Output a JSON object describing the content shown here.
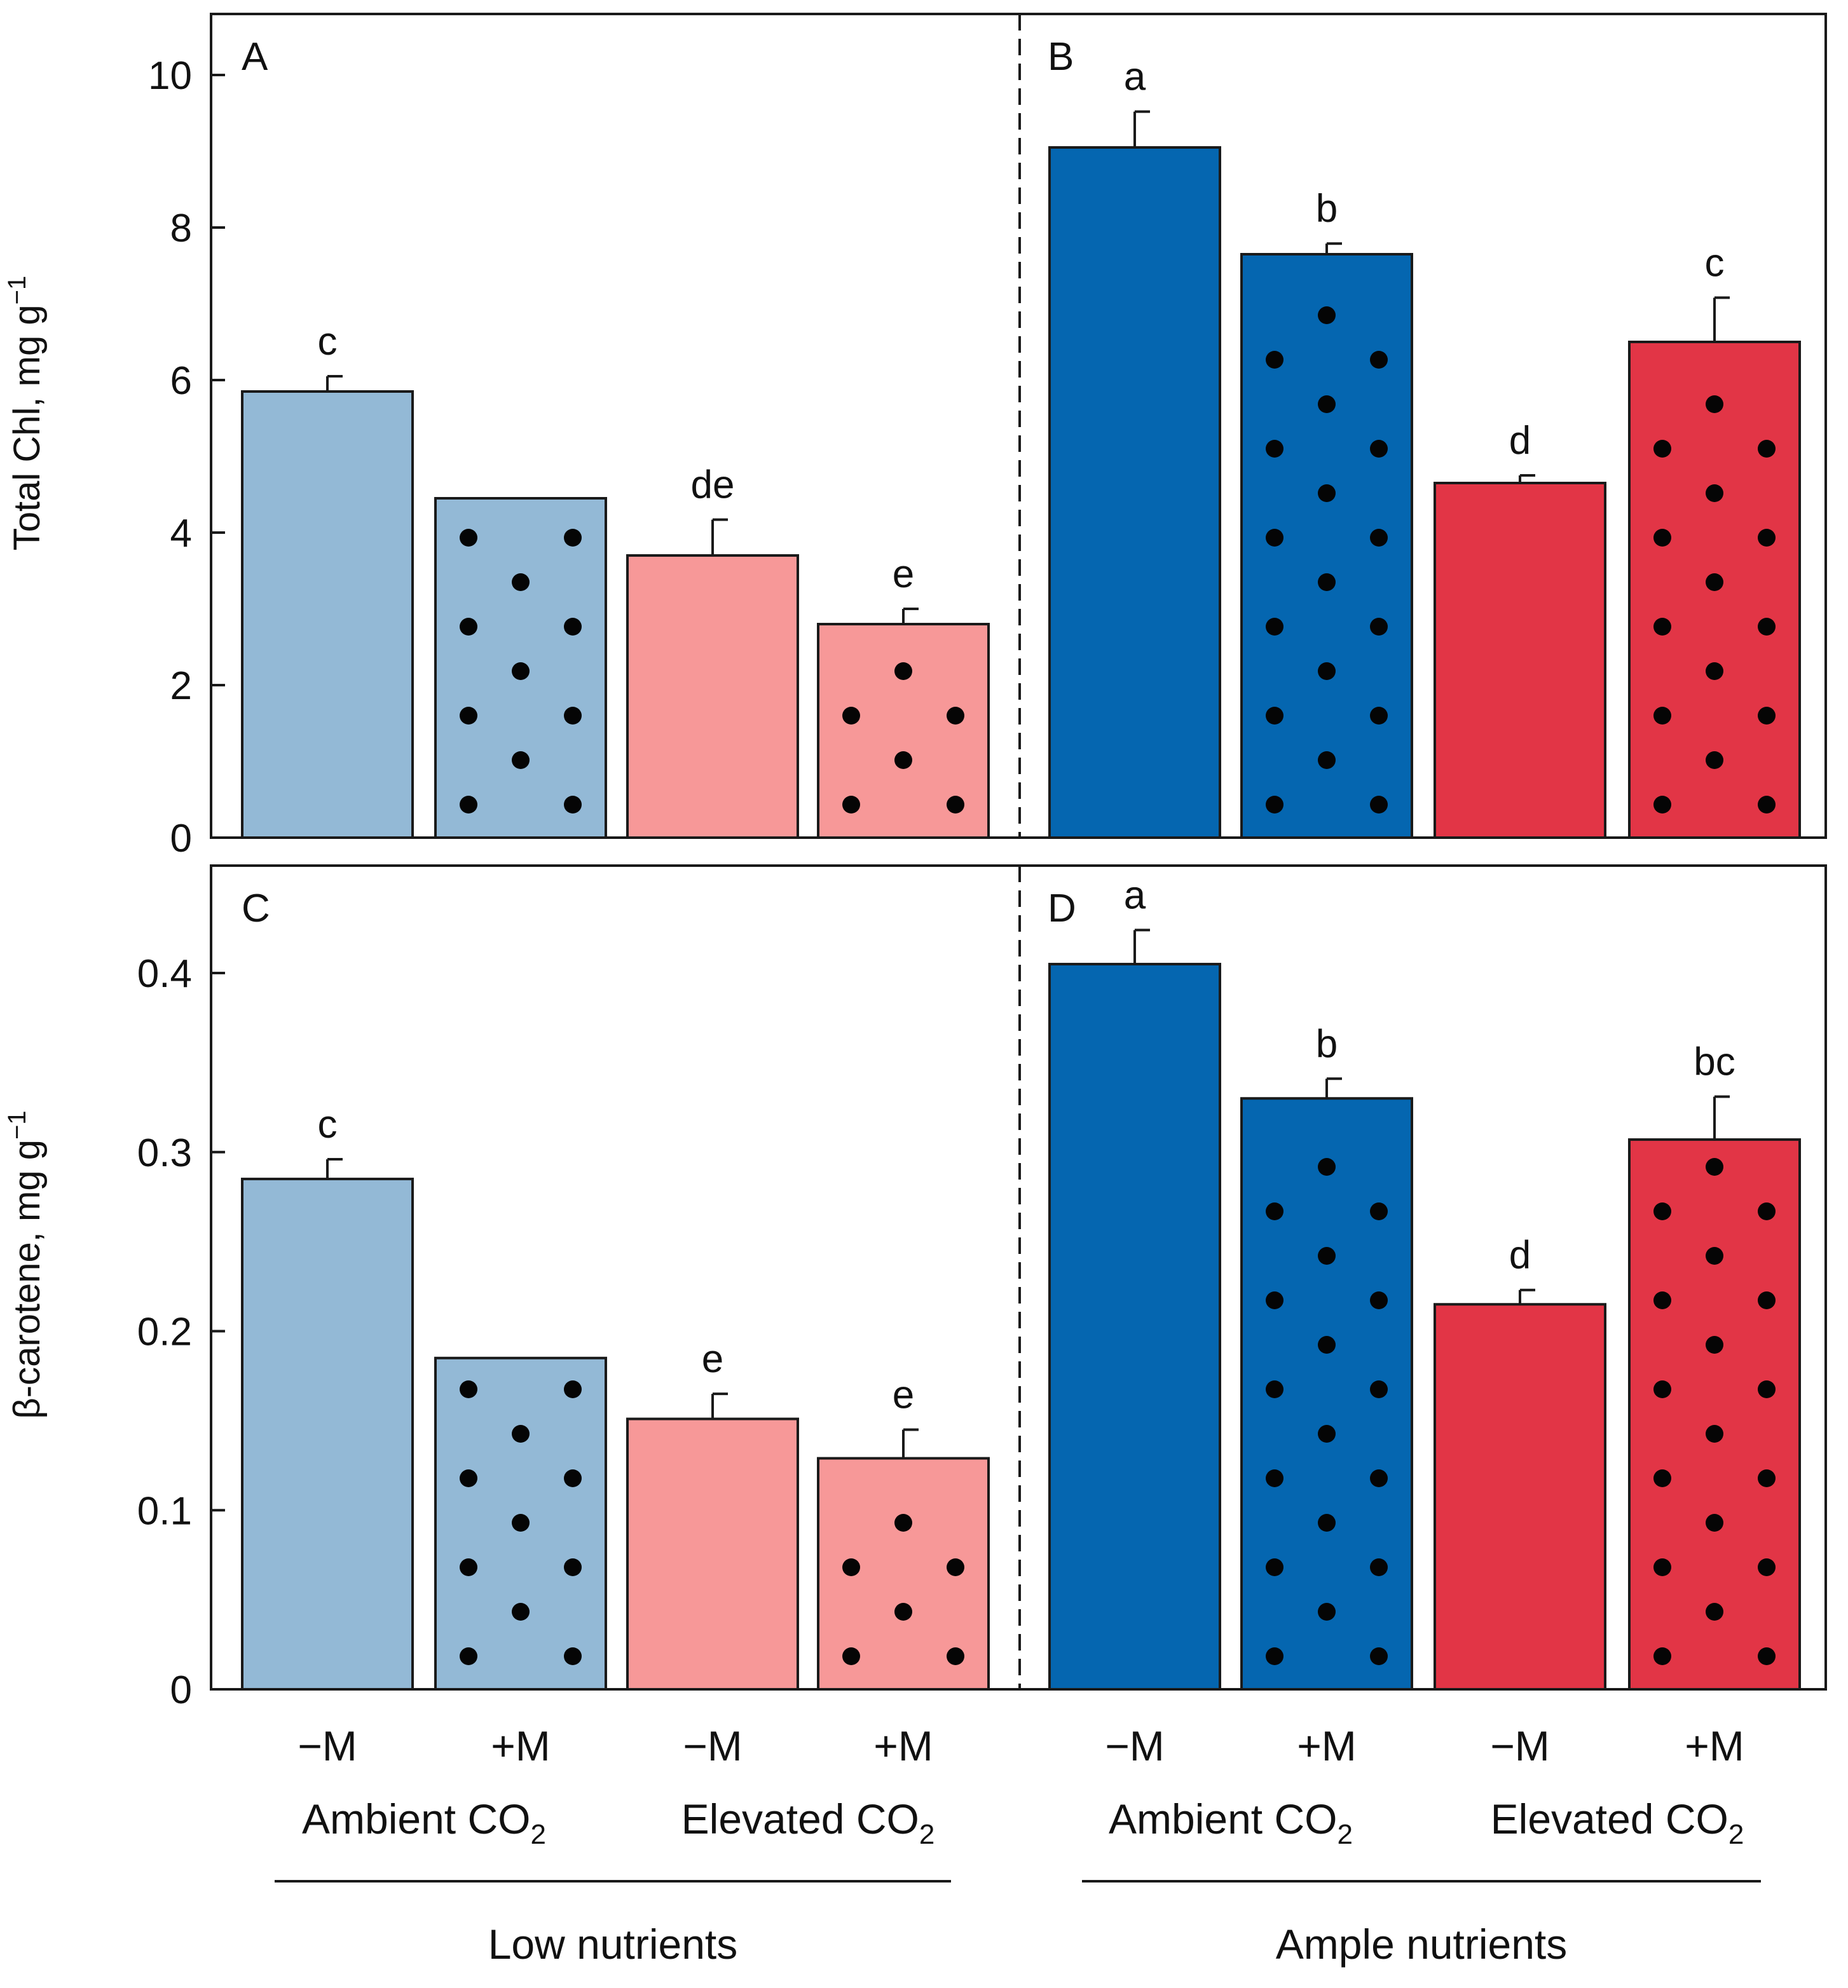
{
  "colors": {
    "ambient_low": "#93b9d6",
    "elevated_low": "#f79898",
    "ambient_ample": "#0566b0",
    "elevated_ample": "#e23546"
  },
  "x_axis": {
    "categories": [
      "−M",
      "+M",
      "−M",
      "+M",
      "−M",
      "+M",
      "−M",
      "+M"
    ],
    "co2_labels": [
      "Ambient CO",
      "Elevated CO",
      "Ambient CO",
      "Elevated CO"
    ],
    "co2_subscript": "2",
    "nutrient_labels": [
      "Low nutrients",
      "Ample nutrients"
    ]
  },
  "chart_data": [
    {
      "type": "bar",
      "panels": [
        "A",
        "B"
      ],
      "ylabel_main": "Total Chl, mg g",
      "ylabel_sup": "−1",
      "ylim": [
        0,
        10.8
      ],
      "yticks": [
        "0",
        "2",
        "4",
        "6",
        "8",
        "10"
      ],
      "ytick_values": [
        0,
        2,
        4,
        6,
        8,
        10
      ],
      "groups": [
        "Low nutrients",
        "Ample nutrients"
      ],
      "bars": [
        {
          "panel": "A",
          "nutrients": "Low nutrients",
          "co2": "Ambient CO2",
          "treatment": "−M",
          "value": 5.85,
          "error": 0.2,
          "letter": "c",
          "dotted": false,
          "color": "ambient_low"
        },
        {
          "panel": "A",
          "nutrients": "Low nutrients",
          "co2": "Ambient CO2",
          "treatment": "+M",
          "value": 4.45,
          "error": 0.0,
          "letter": "",
          "dotted": true,
          "color": "ambient_low"
        },
        {
          "panel": "A",
          "nutrients": "Low nutrients",
          "co2": "Elevated CO2",
          "treatment": "−M",
          "value": 3.7,
          "error": 0.47,
          "letter": "de",
          "dotted": false,
          "color": "elevated_low"
        },
        {
          "panel": "A",
          "nutrients": "Low nutrients",
          "co2": "Elevated CO2",
          "treatment": "+M",
          "value": 2.8,
          "error": 0.2,
          "letter": "e",
          "dotted": true,
          "color": "elevated_low"
        },
        {
          "panel": "B",
          "nutrients": "Ample nutrients",
          "co2": "Ambient CO2",
          "treatment": "−M",
          "value": 9.05,
          "error": 0.47,
          "letter": "a",
          "dotted": false,
          "color": "ambient_ample"
        },
        {
          "panel": "B",
          "nutrients": "Ample nutrients",
          "co2": "Ambient CO2",
          "treatment": "+M",
          "value": 7.65,
          "error": 0.14,
          "letter": "b",
          "dotted": true,
          "color": "ambient_ample"
        },
        {
          "panel": "B",
          "nutrients": "Ample nutrients",
          "co2": "Elevated CO2",
          "treatment": "−M",
          "value": 4.65,
          "error": 0.1,
          "letter": "d",
          "dotted": false,
          "color": "elevated_ample"
        },
        {
          "panel": "B",
          "nutrients": "Ample nutrients",
          "co2": "Elevated CO2",
          "treatment": "+M",
          "value": 6.5,
          "error": 0.58,
          "letter": "c",
          "dotted": true,
          "color": "elevated_ample"
        }
      ]
    },
    {
      "type": "bar",
      "panels": [
        "C",
        "D"
      ],
      "ylabel_main": "β-carotene, mg g",
      "ylabel_sup": "−1",
      "ylim": [
        0,
        0.46
      ],
      "yticks": [
        "0",
        "0.1",
        "0.2",
        "0.3",
        "0.4"
      ],
      "ytick_values": [
        0,
        0.1,
        0.2,
        0.3,
        0.4
      ],
      "groups": [
        "Low nutrients",
        "Ample nutrients"
      ],
      "bars": [
        {
          "panel": "C",
          "nutrients": "Low nutrients",
          "co2": "Ambient CO2",
          "treatment": "−M",
          "value": 0.285,
          "error": 0.011,
          "letter": "c",
          "dotted": false,
          "color": "ambient_low"
        },
        {
          "panel": "C",
          "nutrients": "Low nutrients",
          "co2": "Ambient CO2",
          "treatment": "+M",
          "value": 0.185,
          "error": 0.0,
          "letter": "",
          "dotted": true,
          "color": "ambient_low"
        },
        {
          "panel": "C",
          "nutrients": "Low nutrients",
          "co2": "Elevated CO2",
          "treatment": "−M",
          "value": 0.151,
          "error": 0.014,
          "letter": "e",
          "dotted": false,
          "color": "elevated_low"
        },
        {
          "panel": "C",
          "nutrients": "Low nutrients",
          "co2": "Elevated CO2",
          "treatment": "+M",
          "value": 0.129,
          "error": 0.016,
          "letter": "e",
          "dotted": true,
          "color": "elevated_low"
        },
        {
          "panel": "D",
          "nutrients": "Ample nutrients",
          "co2": "Ambient CO2",
          "treatment": "−M",
          "value": 0.405,
          "error": 0.019,
          "letter": "a",
          "dotted": false,
          "color": "ambient_ample"
        },
        {
          "panel": "D",
          "nutrients": "Ample nutrients",
          "co2": "Ambient CO2",
          "treatment": "+M",
          "value": 0.33,
          "error": 0.011,
          "letter": "b",
          "dotted": true,
          "color": "ambient_ample"
        },
        {
          "panel": "D",
          "nutrients": "Ample nutrients",
          "co2": "Elevated CO2",
          "treatment": "−M",
          "value": 0.215,
          "error": 0.008,
          "letter": "d",
          "dotted": false,
          "color": "elevated_ample"
        },
        {
          "panel": "D",
          "nutrients": "Ample nutrients",
          "co2": "Elevated CO2",
          "treatment": "+M",
          "value": 0.307,
          "error": 0.024,
          "letter": "bc",
          "dotted": true,
          "color": "elevated_ample"
        }
      ]
    }
  ]
}
